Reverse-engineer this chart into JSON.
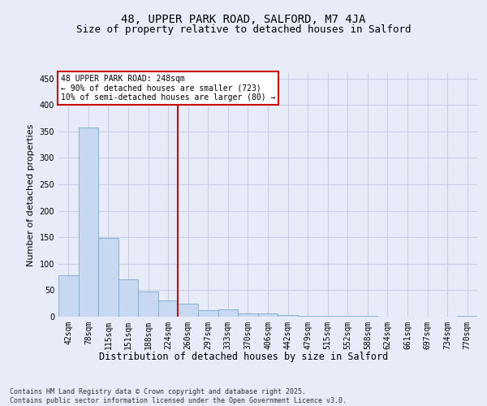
{
  "title1": "48, UPPER PARK ROAD, SALFORD, M7 4JA",
  "title2": "Size of property relative to detached houses in Salford",
  "xlabel": "Distribution of detached houses by size in Salford",
  "ylabel": "Number of detached properties",
  "categories": [
    "42sqm",
    "78sqm",
    "115sqm",
    "151sqm",
    "188sqm",
    "224sqm",
    "260sqm",
    "297sqm",
    "333sqm",
    "370sqm",
    "406sqm",
    "442sqm",
    "479sqm",
    "515sqm",
    "552sqm",
    "588sqm",
    "624sqm",
    "661sqm",
    "697sqm",
    "734sqm",
    "770sqm"
  ],
  "values": [
    78,
    358,
    148,
    70,
    47,
    31,
    25,
    12,
    14,
    6,
    6,
    3,
    2,
    1,
    1,
    1,
    0,
    0,
    0,
    0,
    2
  ],
  "bar_color": "#c8d8f0",
  "bar_edge_color": "#7aaad0",
  "grid_color": "#c8d0e8",
  "background_color": "#e8ecf8",
  "vline_color": "#cc0000",
  "vline_position": 5.5,
  "annotation_text": "48 UPPER PARK ROAD: 248sqm\n← 90% of detached houses are smaller (723)\n10% of semi-detached houses are larger (80) →",
  "annotation_box_color": "#cc0000",
  "ylim": [
    0,
    460
  ],
  "yticks": [
    0,
    50,
    100,
    150,
    200,
    250,
    300,
    350,
    400,
    450
  ],
  "footnote": "Contains HM Land Registry data © Crown copyright and database right 2025.\nContains public sector information licensed under the Open Government Licence v3.0.",
  "title1_fontsize": 10,
  "title2_fontsize": 9,
  "xlabel_fontsize": 8.5,
  "ylabel_fontsize": 8,
  "tick_fontsize": 7,
  "annotation_fontsize": 7,
  "footnote_fontsize": 6
}
